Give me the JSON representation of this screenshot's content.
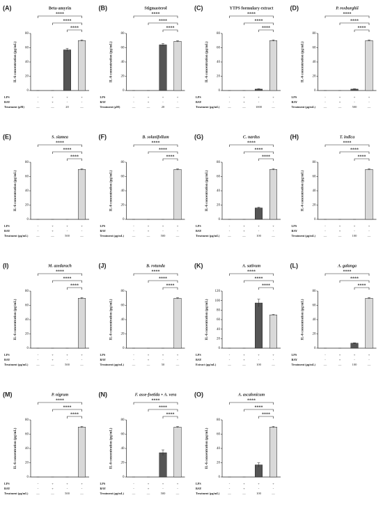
{
  "chart_data": [
    {
      "type": "bar",
      "panel": "(A)",
      "title": "Beta-amyrin",
      "title_italic": false,
      "ylabel": "IL-6 concentration (pg/mL)",
      "values": [
        0,
        0,
        57,
        70
      ],
      "errors": [
        0,
        0,
        2,
        1
      ],
      "colors": [
        "#ffffff",
        "#ffffff",
        "#555555",
        "#d9d9d9"
      ],
      "ylim": [
        0,
        80
      ],
      "yticks": [
        0,
        20,
        40,
        60,
        80
      ],
      "significance": [
        "****",
        "****",
        "****"
      ],
      "conditions": [
        {
          "label": "LPS",
          "cells": [
            "-",
            "+",
            "+",
            "+"
          ]
        },
        {
          "label": "BAY",
          "cells": [
            "-",
            "+",
            "-",
            "-"
          ]
        },
        {
          "label": "Treatment (μM)",
          "cells": [
            "—",
            "—",
            "20",
            "—"
          ]
        }
      ]
    },
    {
      "type": "bar",
      "panel": "(B)",
      "title": "Stigmasterol",
      "title_italic": false,
      "ylabel": "IL-6 concentration (pg/mL)",
      "values": [
        0,
        0,
        64,
        69
      ],
      "errors": [
        0,
        0,
        2,
        1
      ],
      "colors": [
        "#ffffff",
        "#ffffff",
        "#555555",
        "#d9d9d9"
      ],
      "ylim": [
        0,
        80
      ],
      "yticks": [
        0,
        20,
        40,
        60,
        80
      ],
      "significance": [
        "****",
        "****",
        "****"
      ],
      "conditions": [
        {
          "label": "LPS",
          "cells": [
            "-",
            "+",
            "+",
            "+"
          ]
        },
        {
          "label": "BAY",
          "cells": [
            "-",
            "+",
            "-",
            "-"
          ]
        },
        {
          "label": "Treatment (μM)",
          "cells": [
            "—",
            "—",
            "20",
            "—"
          ]
        }
      ]
    },
    {
      "type": "bar",
      "panel": "(C)",
      "title": "YTPS formulary extract",
      "title_italic": false,
      "ylabel": "IL-6 concentration (pg/mL)",
      "values": [
        0,
        0,
        2,
        70
      ],
      "errors": [
        0,
        0,
        0.5,
        1
      ],
      "colors": [
        "#ffffff",
        "#ffffff",
        "#555555",
        "#d9d9d9"
      ],
      "ylim": [
        0,
        80
      ],
      "yticks": [
        0,
        20,
        40,
        60,
        80
      ],
      "significance": [
        "****",
        "****",
        "****"
      ],
      "conditions": [
        {
          "label": "LPS",
          "cells": [
            "-",
            "+",
            "+",
            "+"
          ]
        },
        {
          "label": "BAY",
          "cells": [
            "-",
            "+",
            "-",
            "-"
          ]
        },
        {
          "label": "Treatment (μg/mL)",
          "cells": [
            "—",
            "—",
            "1000",
            "—"
          ]
        }
      ]
    },
    {
      "type": "bar",
      "panel": "(D)",
      "title": "P. roxburghii",
      "title_italic": true,
      "ylabel": "IL-6 concentration (pg/mL)",
      "values": [
        0,
        0,
        2,
        70
      ],
      "errors": [
        0,
        0,
        0.5,
        1
      ],
      "colors": [
        "#ffffff",
        "#ffffff",
        "#555555",
        "#d9d9d9"
      ],
      "ylim": [
        0,
        80
      ],
      "yticks": [
        0,
        20,
        40,
        60,
        80
      ],
      "significance": [
        "****",
        "****",
        "****"
      ],
      "conditions": [
        {
          "label": "LPS",
          "cells": [
            "-",
            "+",
            "+",
            "+"
          ]
        },
        {
          "label": "BAY",
          "cells": [
            "-",
            "+",
            "-",
            "-"
          ]
        },
        {
          "label": "Treatment (μg/mL)",
          "cells": [
            "—",
            "—",
            "500",
            "—"
          ]
        }
      ]
    },
    {
      "type": "bar",
      "panel": "(E)",
      "title": "S. siamea",
      "title_italic": true,
      "ylabel": "IL-6 concentration (pg/mL)",
      "values": [
        0,
        0,
        0,
        70
      ],
      "errors": [
        0,
        0,
        0,
        1
      ],
      "colors": [
        "#ffffff",
        "#ffffff",
        "#555555",
        "#d9d9d9"
      ],
      "ylim": [
        0,
        80
      ],
      "yticks": [
        0,
        20,
        40,
        60,
        80
      ],
      "significance": [
        "****",
        "****",
        "****"
      ],
      "conditions": [
        {
          "label": "LPS",
          "cells": [
            "-",
            "+",
            "+",
            "+"
          ]
        },
        {
          "label": "BAY",
          "cells": [
            "-",
            "+",
            "-",
            "-"
          ]
        },
        {
          "label": "Treatment (μg/mL)",
          "cells": [
            "—",
            "—",
            "500",
            "—"
          ]
        }
      ]
    },
    {
      "type": "bar",
      "panel": "(F)",
      "title": "B. solanifolium",
      "title_italic": true,
      "ylabel": "IL-6 concentration (pg/mL)",
      "values": [
        0,
        0,
        0,
        70
      ],
      "errors": [
        0,
        0,
        0,
        1
      ],
      "colors": [
        "#ffffff",
        "#ffffff",
        "#555555",
        "#d9d9d9"
      ],
      "ylim": [
        0,
        80
      ],
      "yticks": [
        0,
        20,
        40,
        60,
        80
      ],
      "significance": [
        "****",
        "****",
        "****"
      ],
      "conditions": [
        {
          "label": "LPS",
          "cells": [
            "-",
            "+",
            "+",
            "+"
          ]
        },
        {
          "label": "BAY",
          "cells": [
            "-",
            "+",
            "-",
            "-"
          ]
        },
        {
          "label": "Treatment (μg/mL)",
          "cells": [
            "—",
            "—",
            "500",
            "—"
          ]
        }
      ]
    },
    {
      "type": "bar",
      "panel": "(G)",
      "title": "C. nardus",
      "title_italic": true,
      "ylabel": "IL-6 concentration (pg/mL)",
      "values": [
        0,
        0,
        16,
        70
      ],
      "errors": [
        0,
        0,
        1,
        1
      ],
      "colors": [
        "#ffffff",
        "#ffffff",
        "#555555",
        "#d9d9d9"
      ],
      "ylim": [
        0,
        80
      ],
      "yticks": [
        0,
        20,
        40,
        60,
        80
      ],
      "significance": [
        "****",
        "****",
        "****"
      ],
      "conditions": [
        {
          "label": "LPS",
          "cells": [
            "-",
            "+",
            "+",
            "+"
          ]
        },
        {
          "label": "BAY",
          "cells": [
            "-",
            "+",
            "-",
            "-"
          ]
        },
        {
          "label": "Treatment (μg/mL)",
          "cells": [
            "—",
            "—",
            "100",
            "—"
          ]
        }
      ]
    },
    {
      "type": "bar",
      "panel": "(H)",
      "title": "T. indica",
      "title_italic": true,
      "ylabel": "IL-6 concentration (pg/mL)",
      "values": [
        0,
        0,
        0,
        70
      ],
      "errors": [
        0,
        0,
        0,
        1
      ],
      "colors": [
        "#ffffff",
        "#ffffff",
        "#555555",
        "#d9d9d9"
      ],
      "ylim": [
        0,
        80
      ],
      "yticks": [
        0,
        20,
        40,
        60,
        80
      ],
      "significance": [
        "****",
        "****",
        "****"
      ],
      "conditions": [
        {
          "label": "LPS",
          "cells": [
            "-",
            "+",
            "+",
            "+"
          ]
        },
        {
          "label": "BAY",
          "cells": [
            "-",
            "+",
            "-",
            "-"
          ]
        },
        {
          "label": "Treatment (μg/mL)",
          "cells": [
            "—",
            "—",
            "100",
            "—"
          ]
        }
      ]
    },
    {
      "type": "bar",
      "panel": "(I)",
      "title": "M. azedarach",
      "title_italic": true,
      "ylabel": "IL-6 concentration (pg/mL)",
      "values": [
        0,
        0,
        0,
        70
      ],
      "errors": [
        0,
        0,
        0,
        1
      ],
      "colors": [
        "#ffffff",
        "#ffffff",
        "#555555",
        "#d9d9d9"
      ],
      "ylim": [
        0,
        80
      ],
      "yticks": [
        0,
        20,
        40,
        60,
        80
      ],
      "significance": [
        "****",
        "****",
        "****"
      ],
      "conditions": [
        {
          "label": "LPS",
          "cells": [
            "-",
            "+",
            "+",
            "+"
          ]
        },
        {
          "label": "BAY",
          "cells": [
            "-",
            "+",
            "-",
            "-"
          ]
        },
        {
          "label": "Treatment (μg/mL)",
          "cells": [
            "—",
            "—",
            "500",
            "—"
          ]
        }
      ]
    },
    {
      "type": "bar",
      "panel": "(J)",
      "title": "B. rotunda",
      "title_italic": true,
      "ylabel": "IL-6 concentration (pg/mL)",
      "values": [
        0,
        0,
        0,
        70
      ],
      "errors": [
        0,
        0,
        0,
        1
      ],
      "colors": [
        "#ffffff",
        "#ffffff",
        "#555555",
        "#d9d9d9"
      ],
      "ylim": [
        0,
        80
      ],
      "yticks": [
        0,
        20,
        40,
        60,
        80
      ],
      "significance": [
        "****",
        "****",
        "****"
      ],
      "conditions": [
        {
          "label": "LPS",
          "cells": [
            "-",
            "+",
            "+",
            "+"
          ]
        },
        {
          "label": "BAY",
          "cells": [
            "-",
            "+",
            "-",
            "-"
          ]
        },
        {
          "label": "Treatment (μg/mL)",
          "cells": [
            "—",
            "—",
            "50",
            "—"
          ]
        }
      ]
    },
    {
      "type": "bar",
      "panel": "(K)",
      "title": "A. sativum",
      "title_italic": true,
      "ylabel": "IL-6 concentration (pg/mL)",
      "values": [
        0,
        0,
        95,
        70
      ],
      "errors": [
        0,
        0,
        8,
        1
      ],
      "colors": [
        "#ffffff",
        "#ffffff",
        "#555555",
        "#d9d9d9"
      ],
      "ylim": [
        0,
        120
      ],
      "yticks": [
        0,
        20,
        40,
        60,
        80,
        100,
        120
      ],
      "significance": [
        "****",
        "****",
        "****"
      ],
      "conditions": [
        {
          "label": "LPS",
          "cells": [
            "-",
            "+",
            "+",
            "+"
          ]
        },
        {
          "label": "BAY",
          "cells": [
            "-",
            "+",
            "-",
            "-"
          ]
        },
        {
          "label": "Extract (μg/mL)",
          "cells": [
            "—",
            "—",
            "100",
            "—"
          ]
        }
      ]
    },
    {
      "type": "bar",
      "panel": "(L)",
      "title": "A. galanga",
      "title_italic": true,
      "ylabel": "IL-6 concentration (pg/mL)",
      "values": [
        0,
        0,
        7,
        70
      ],
      "errors": [
        0,
        0,
        0.5,
        1
      ],
      "colors": [
        "#ffffff",
        "#ffffff",
        "#555555",
        "#d9d9d9"
      ],
      "ylim": [
        0,
        80
      ],
      "yticks": [
        0,
        20,
        40,
        60,
        80
      ],
      "significance": [
        "****",
        "****",
        "****"
      ],
      "conditions": [
        {
          "label": "LPS",
          "cells": [
            "-",
            "+",
            "+",
            "+"
          ]
        },
        {
          "label": "BAY",
          "cells": [
            "-",
            "+",
            "-",
            "-"
          ]
        },
        {
          "label": "Treatment (μg/mL)",
          "cells": [
            "—",
            "—",
            "100",
            "—"
          ]
        }
      ]
    },
    {
      "type": "bar",
      "panel": "(M)",
      "title": "P. nigrum",
      "title_italic": true,
      "ylabel": "IL-6 concentration (pg/mL)",
      "values": [
        0,
        0,
        0,
        70
      ],
      "errors": [
        0,
        0,
        0,
        1
      ],
      "colors": [
        "#ffffff",
        "#ffffff",
        "#555555",
        "#d9d9d9"
      ],
      "ylim": [
        0,
        80
      ],
      "yticks": [
        0,
        20,
        40,
        60,
        80
      ],
      "significance": [
        "****",
        "****",
        "****"
      ],
      "conditions": [
        {
          "label": "LPS",
          "cells": [
            "-",
            "+",
            "+",
            "+"
          ]
        },
        {
          "label": "BAY",
          "cells": [
            "-",
            "+",
            "-",
            "-"
          ]
        },
        {
          "label": "Treatment (μg/mL)",
          "cells": [
            "—",
            "—",
            "500",
            "—"
          ]
        }
      ]
    },
    {
      "type": "bar",
      "panel": "(N)",
      "title": "F. asse-foetida + A. vera",
      "title_italic": true,
      "ylabel": "IL-6 concentration (pg/mL)",
      "values": [
        0,
        0,
        34,
        70
      ],
      "errors": [
        0,
        0,
        4,
        1
      ],
      "colors": [
        "#ffffff",
        "#ffffff",
        "#555555",
        "#d9d9d9"
      ],
      "ylim": [
        0,
        80
      ],
      "yticks": [
        0,
        20,
        40,
        60,
        80
      ],
      "significance": [
        "****",
        "****",
        "****"
      ],
      "conditions": [
        {
          "label": "LPS",
          "cells": [
            "-",
            "+",
            "+",
            "+"
          ]
        },
        {
          "label": "BAY",
          "cells": [
            "-",
            "+",
            "-",
            "-"
          ]
        },
        {
          "label": "Treatment (μg/mL)",
          "cells": [
            "—",
            "—",
            "500",
            "—"
          ]
        }
      ]
    },
    {
      "type": "bar",
      "panel": "(O)",
      "title": "A. ascalonicum",
      "title_italic": true,
      "ylabel": "IL-6 concentration (pg/mL)",
      "values": [
        0,
        0,
        17,
        70
      ],
      "errors": [
        0,
        0,
        3,
        1
      ],
      "colors": [
        "#ffffff",
        "#ffffff",
        "#555555",
        "#d9d9d9"
      ],
      "ylim": [
        0,
        80
      ],
      "yticks": [
        0,
        20,
        40,
        60,
        80
      ],
      "significance": [
        "****",
        "****",
        "****"
      ],
      "conditions": [
        {
          "label": "LPS",
          "cells": [
            "-",
            "+",
            "+",
            "+"
          ]
        },
        {
          "label": "BAY",
          "cells": [
            "-",
            "+",
            "-",
            "-"
          ]
        },
        {
          "label": "Treatment (μg/mL)",
          "cells": [
            "—",
            "—",
            "100",
            "—"
          ]
        }
      ]
    }
  ]
}
